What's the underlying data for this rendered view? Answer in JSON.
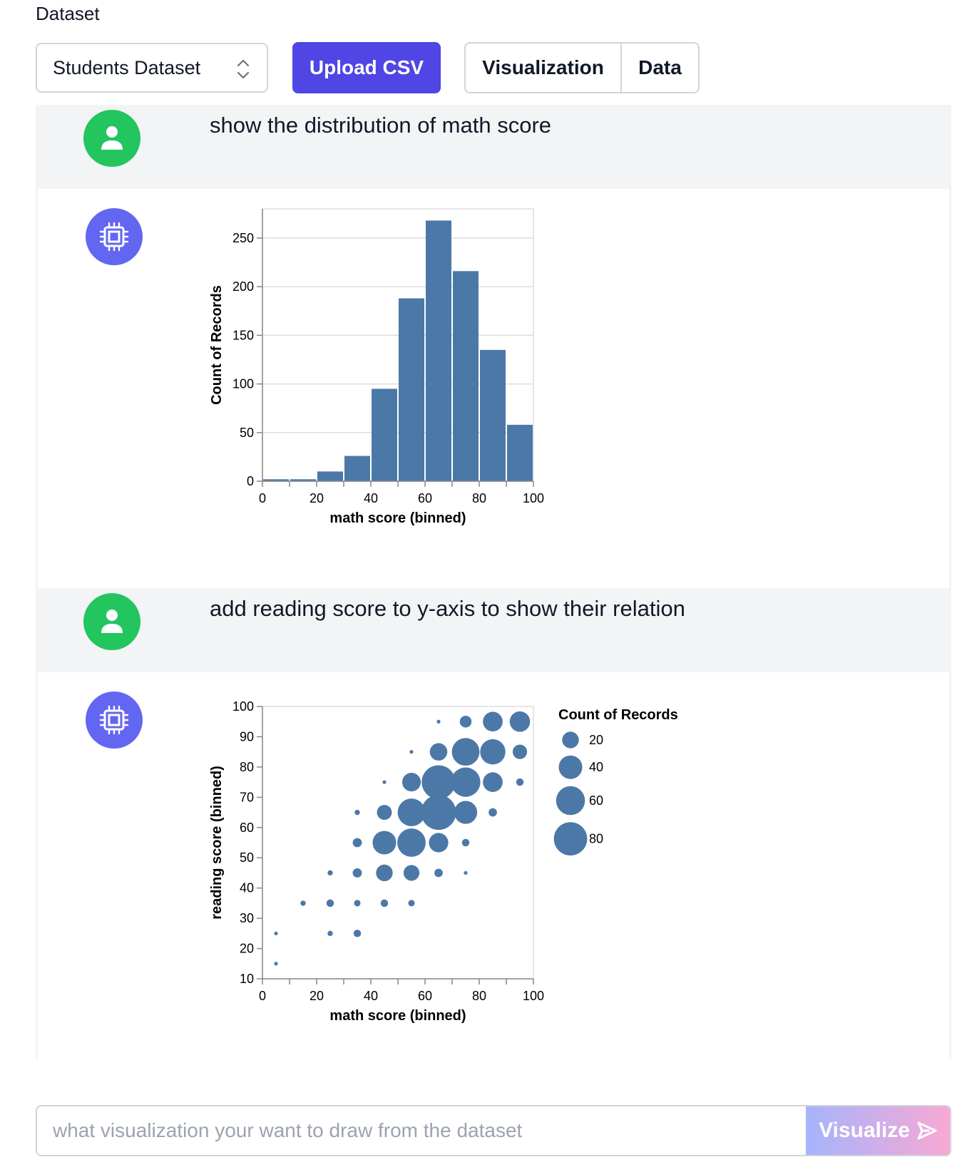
{
  "header": {
    "dataset_label": "Dataset",
    "dataset_select_value": "Students Dataset",
    "upload_label": "Upload CSV",
    "tabs": [
      "Visualization",
      "Data"
    ]
  },
  "messages": [
    {
      "role": "user",
      "text": "show the distribution of math score"
    },
    {
      "role": "assistant",
      "chart_ref": 0
    },
    {
      "role": "user",
      "text": "add reading score to y-axis to show their relation"
    },
    {
      "role": "assistant",
      "chart_ref": 1
    }
  ],
  "chart_data": [
    {
      "type": "bar",
      "title": "",
      "xlabel": "math score (binned)",
      "ylabel": "Count of Records",
      "bins": [
        [
          0,
          10
        ],
        [
          10,
          20
        ],
        [
          20,
          30
        ],
        [
          30,
          40
        ],
        [
          40,
          50
        ],
        [
          50,
          60
        ],
        [
          60,
          70
        ],
        [
          70,
          80
        ],
        [
          80,
          90
        ],
        [
          90,
          100
        ]
      ],
      "values": [
        2,
        2,
        10,
        26,
        95,
        188,
        268,
        216,
        135,
        58
      ],
      "xticks": [
        0,
        20,
        40,
        60,
        80,
        100
      ],
      "yticks": [
        0,
        50,
        100,
        150,
        200,
        250
      ],
      "xlim": [
        0,
        100
      ],
      "ylim": [
        0,
        280
      ],
      "color": "#4c78a8"
    },
    {
      "type": "scatter",
      "xlabel": "math score (binned)",
      "ylabel": "reading score (binned)",
      "size_legend_title": "Count of Records",
      "size_legend": [
        20,
        40,
        60,
        80
      ],
      "xticks": [
        0,
        20,
        40,
        60,
        80,
        100
      ],
      "yticks": [
        10,
        20,
        30,
        40,
        50,
        60,
        70,
        80,
        90,
        100
      ],
      "xlim": [
        0,
        100
      ],
      "ylim": [
        10,
        100
      ],
      "color": "#4c78a8",
      "points": [
        {
          "x": 5,
          "y": 15,
          "count": 1
        },
        {
          "x": 5,
          "y": 25,
          "count": 1
        },
        {
          "x": 15,
          "y": 35,
          "count": 2
        },
        {
          "x": 25,
          "y": 25,
          "count": 2
        },
        {
          "x": 25,
          "y": 35,
          "count": 4
        },
        {
          "x": 25,
          "y": 45,
          "count": 2
        },
        {
          "x": 35,
          "y": 25,
          "count": 4
        },
        {
          "x": 35,
          "y": 35,
          "count": 3
        },
        {
          "x": 35,
          "y": 45,
          "count": 6
        },
        {
          "x": 35,
          "y": 55,
          "count": 6
        },
        {
          "x": 35,
          "y": 65,
          "count": 2
        },
        {
          "x": 45,
          "y": 35,
          "count": 4
        },
        {
          "x": 45,
          "y": 45,
          "count": 20
        },
        {
          "x": 45,
          "y": 55,
          "count": 40
        },
        {
          "x": 45,
          "y": 65,
          "count": 16
        },
        {
          "x": 45,
          "y": 75,
          "count": 1
        },
        {
          "x": 55,
          "y": 35,
          "count": 3
        },
        {
          "x": 55,
          "y": 45,
          "count": 18
        },
        {
          "x": 55,
          "y": 55,
          "count": 58
        },
        {
          "x": 55,
          "y": 65,
          "count": 55
        },
        {
          "x": 55,
          "y": 75,
          "count": 25
        },
        {
          "x": 55,
          "y": 85,
          "count": 1
        },
        {
          "x": 65,
          "y": 45,
          "count": 5
        },
        {
          "x": 65,
          "y": 55,
          "count": 27
        },
        {
          "x": 65,
          "y": 65,
          "count": 88
        },
        {
          "x": 65,
          "y": 75,
          "count": 82
        },
        {
          "x": 65,
          "y": 85,
          "count": 22
        },
        {
          "x": 65,
          "y": 95,
          "count": 1
        },
        {
          "x": 75,
          "y": 45,
          "count": 1
        },
        {
          "x": 75,
          "y": 55,
          "count": 4
        },
        {
          "x": 75,
          "y": 65,
          "count": 38
        },
        {
          "x": 75,
          "y": 75,
          "count": 62
        },
        {
          "x": 75,
          "y": 85,
          "count": 55
        },
        {
          "x": 75,
          "y": 95,
          "count": 10
        },
        {
          "x": 85,
          "y": 65,
          "count": 5
        },
        {
          "x": 85,
          "y": 75,
          "count": 28
        },
        {
          "x": 85,
          "y": 85,
          "count": 46
        },
        {
          "x": 85,
          "y": 95,
          "count": 28
        },
        {
          "x": 95,
          "y": 75,
          "count": 4
        },
        {
          "x": 95,
          "y": 85,
          "count": 15
        },
        {
          "x": 95,
          "y": 95,
          "count": 30
        }
      ]
    }
  ],
  "composer": {
    "placeholder": "what visualization your want to draw from the dataset",
    "button_label": "Visualize",
    "button_icon": "send-icon"
  },
  "colors": {
    "accent": "#4f46e5",
    "user_avatar": "#22c55e",
    "bot_avatar": "#6366f1",
    "mark": "#4c78a8"
  }
}
